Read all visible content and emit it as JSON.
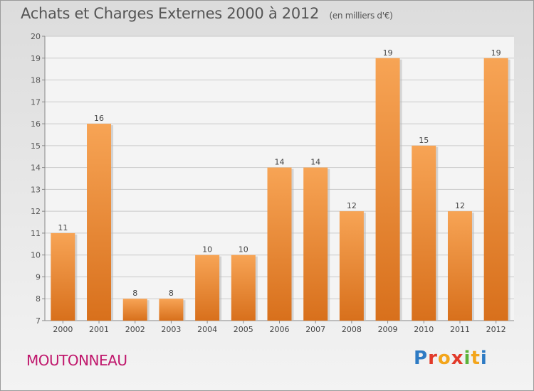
{
  "chart_data": {
    "type": "bar",
    "title": "Achats et Charges Externes 2000 à 2012",
    "subtitle": "(en milliers d'€)",
    "categories": [
      "2000",
      "2001",
      "2002",
      "2003",
      "2004",
      "2005",
      "2006",
      "2007",
      "2008",
      "2009",
      "2010",
      "2011",
      "2012"
    ],
    "values": [
      11,
      16,
      8,
      8,
      10,
      10,
      14,
      14,
      12,
      19,
      15,
      12,
      19
    ],
    "ylim": [
      7,
      20
    ],
    "yticks": [
      7,
      8,
      9,
      10,
      11,
      12,
      13,
      14,
      15,
      16,
      17,
      18,
      19,
      20
    ],
    "grid": true,
    "bar_color": "#f08a2a"
  },
  "commune": "MOUTONNEAU",
  "logo": {
    "letters": [
      "P",
      "r",
      "o",
      "x",
      "i",
      "t",
      "i"
    ]
  }
}
